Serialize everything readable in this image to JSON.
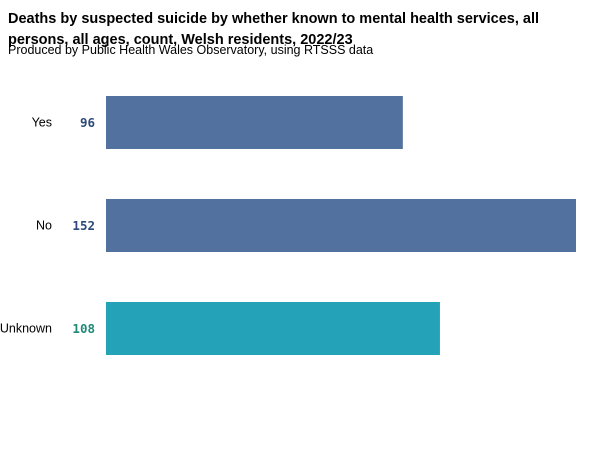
{
  "chart_data": {
    "type": "bar",
    "orientation": "horizontal",
    "title": "Deaths by suspected suicide by whether known to mental health services, all persons, all ages, count, Welsh residents, 2022/23",
    "subtitle": "Produced by Public Health Wales Observatory, using RTSSS data",
    "categories": [
      "Yes",
      "No",
      "Unknown"
    ],
    "values": [
      96,
      152,
      108
    ],
    "value_labels": [
      "96",
      "152",
      "108"
    ],
    "colors": [
      "#52719e",
      "#52719e",
      "#24a3b8"
    ],
    "label_colors": [
      "#2e4a7a",
      "#2e4a7a",
      "#1f8a7a"
    ],
    "xlim": [
      0,
      152
    ],
    "grid": false,
    "legend": "none"
  }
}
